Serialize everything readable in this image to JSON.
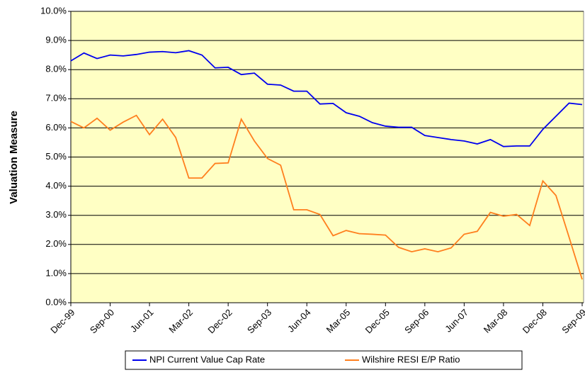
{
  "chart_data": {
    "type": "line",
    "y_label": "Valuation Measure",
    "categories": [
      "Dec-99",
      null,
      null,
      "Sep-00",
      null,
      null,
      "Jun-01",
      null,
      null,
      "Mar-02",
      null,
      null,
      "Dec-02",
      null,
      null,
      "Sep-03",
      null,
      null,
      "Jun-04",
      null,
      null,
      "Mar-05",
      null,
      null,
      "Dec-05",
      null,
      null,
      "Sep-06",
      null,
      null,
      "Jun-07",
      null,
      null,
      "Mar-08",
      null,
      null,
      "Dec-08",
      null,
      null,
      "Sep-09"
    ],
    "series": [
      {
        "name": "NPI Current Value Cap Rate",
        "color": "#0000ee",
        "values": [
          8.3,
          8.57,
          8.38,
          8.5,
          8.47,
          8.52,
          8.6,
          8.62,
          8.58,
          8.65,
          8.5,
          8.06,
          8.08,
          7.83,
          7.88,
          7.5,
          7.47,
          7.26,
          7.26,
          6.82,
          6.84,
          6.52,
          6.4,
          6.18,
          6.06,
          6.02,
          6.02,
          5.74,
          5.67,
          5.6,
          5.55,
          5.45,
          5.6,
          5.36,
          5.38,
          5.38,
          5.95,
          6.4,
          6.85,
          6.8
        ]
      },
      {
        "name": "Wilshire RESI E/P Ratio",
        "color": "#ff7f1e",
        "values": [
          6.22,
          6.0,
          6.33,
          5.92,
          6.2,
          6.43,
          5.77,
          6.3,
          5.67,
          4.28,
          4.28,
          4.78,
          4.8,
          6.3,
          5.55,
          4.95,
          4.72,
          3.19,
          3.19,
          3.03,
          2.3,
          2.48,
          2.37,
          2.35,
          2.32,
          1.9,
          1.75,
          1.85,
          1.75,
          1.88,
          2.35,
          2.45,
          3.1,
          2.97,
          3.03,
          2.65,
          4.18,
          3.68,
          2.25,
          0.8
        ]
      }
    ],
    "ylim": [
      0,
      10
    ],
    "yticks": [
      {
        "value": 0,
        "label": "0.0%"
      },
      {
        "value": 1,
        "label": "1.0%"
      },
      {
        "value": 2,
        "label": "2.0%"
      },
      {
        "value": 3,
        "label": "3.0%"
      },
      {
        "value": 4,
        "label": "4.0%"
      },
      {
        "value": 5,
        "label": "5.0%"
      },
      {
        "value": 6,
        "label": "6.0%"
      },
      {
        "value": 7,
        "label": "7.0%"
      },
      {
        "value": 8,
        "label": "8.0%"
      },
      {
        "value": 9,
        "label": "9.0%"
      },
      {
        "value": 10,
        "label": "10.0%"
      }
    ],
    "grid": true,
    "background": "#ffffc4"
  }
}
